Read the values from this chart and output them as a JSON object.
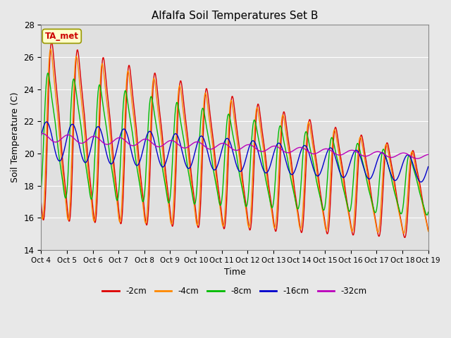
{
  "title": "Alfalfa Soil Temperatures Set B",
  "xlabel": "Time",
  "ylabel": "Soil Temperature (C)",
  "ylim": [
    14,
    28
  ],
  "annotation": "TA_met",
  "annotation_color": "#cc0000",
  "annotation_bg": "#ffffcc",
  "annotation_border": "#999900",
  "background_color": "#e8e8e8",
  "plot_bg": "#e0e0e0",
  "grid_color": "#ffffff",
  "series_colors": [
    "#dd0000",
    "#ff8800",
    "#00bb00",
    "#0000cc",
    "#bb00bb"
  ],
  "series_labels": [
    "-2cm",
    "-4cm",
    "-8cm",
    "-16cm",
    "-32cm"
  ],
  "xtick_labels": [
    "Oct 4",
    "Oct 5",
    "Oct 6",
    "Oct 7",
    "Oct 8",
    "Oct 9",
    "Oct 10",
    "Oct 11",
    "Oct 12",
    "Oct 13",
    "Oct 14",
    "Oct 15",
    "Oct 16",
    "Oct 17",
    "Oct 18",
    "Oct 19"
  ],
  "ytick_labels": [
    "14",
    "16",
    "18",
    "20",
    "22",
    "24",
    "26",
    "28"
  ]
}
